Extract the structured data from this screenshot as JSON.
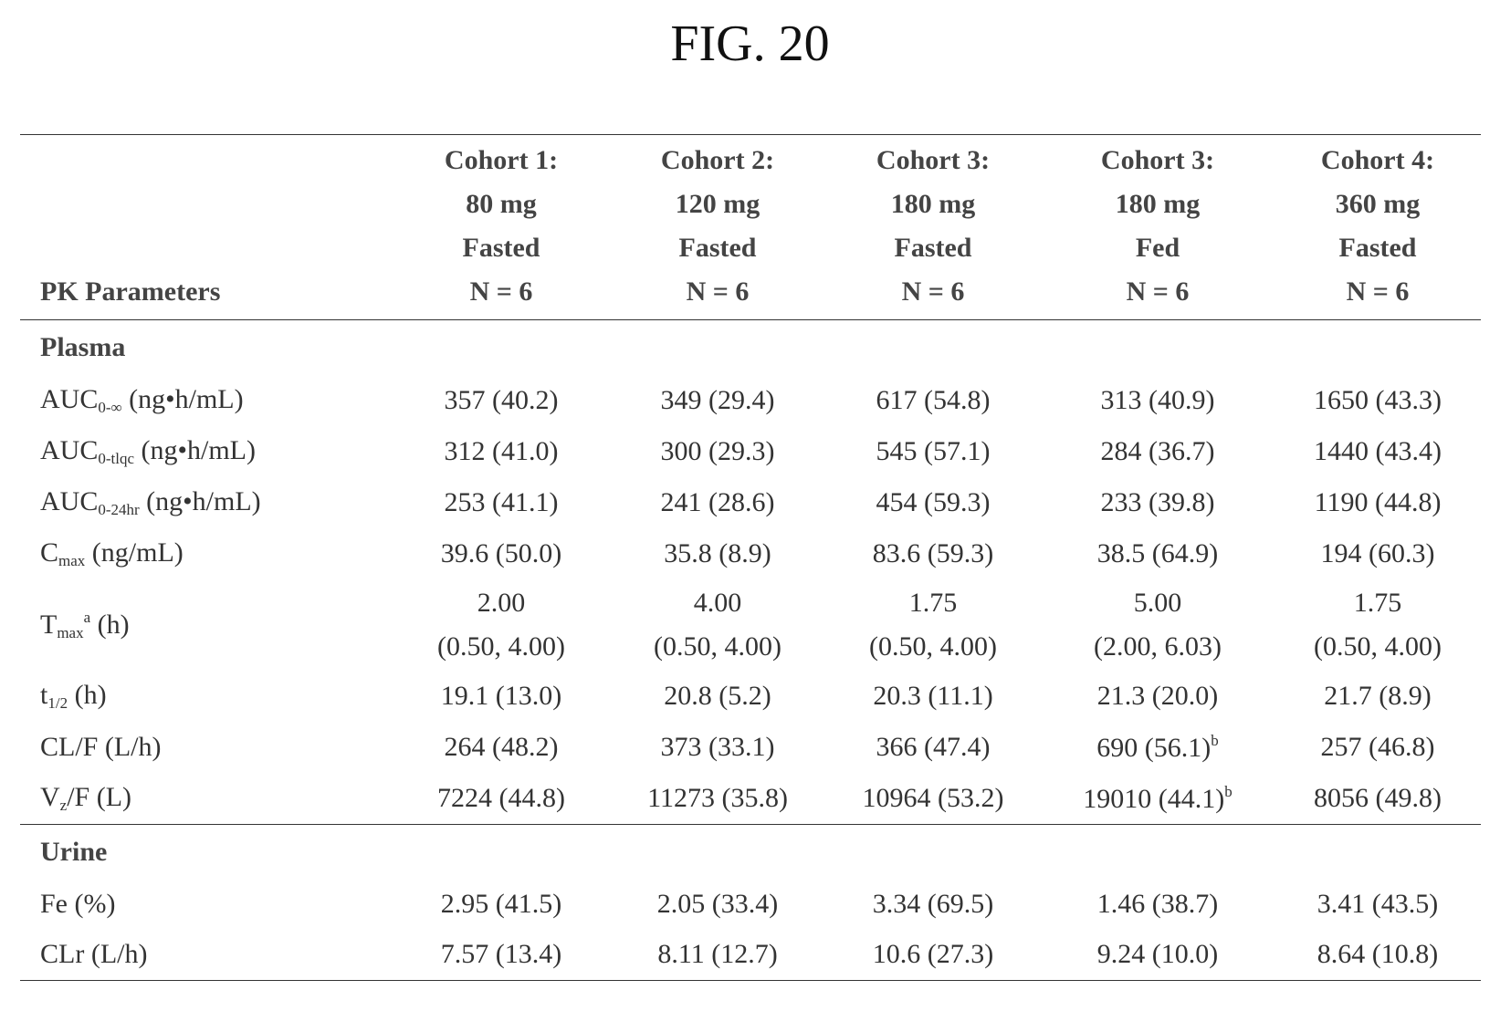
{
  "figure": {
    "title": "FIG. 20"
  },
  "table": {
    "header": {
      "param_label": "PK Parameters",
      "columns": [
        {
          "line1": "Cohort 1:",
          "line2": "80 mg",
          "line3": "Fasted",
          "line4": "N = 6"
        },
        {
          "line1": "Cohort 2:",
          "line2": "120 mg",
          "line3": "Fasted",
          "line4": "N = 6"
        },
        {
          "line1": "Cohort 3:",
          "line2": "180 mg",
          "line3": "Fasted",
          "line4": "N = 6"
        },
        {
          "line1": "Cohort 3:",
          "line2": "180 mg",
          "line3": "Fed",
          "line4": "N = 6"
        },
        {
          "line1": "Cohort 4:",
          "line2": "360 mg",
          "line3": "Fasted",
          "line4": "N = 6"
        }
      ]
    },
    "sections": {
      "plasma": "Plasma",
      "urine": "Urine"
    },
    "rows": {
      "auc_inf": {
        "label_main": "AUC",
        "label_sub": "0-∞",
        "label_rest": " (ng•h/mL)",
        "values": [
          "357 (40.2)",
          "349 (29.4)",
          "617 (54.8)",
          "313 (40.9)",
          "1650 (43.3)"
        ]
      },
      "auc_tlqc": {
        "label_main": "AUC",
        "label_sub": "0-tlqc",
        "label_rest": " (ng•h/mL)",
        "values": [
          "312 (41.0)",
          "300 (29.3)",
          "545 (57.1)",
          "284 (36.7)",
          "1440 (43.4)"
        ]
      },
      "auc_24": {
        "label_main": "AUC",
        "label_sub": "0-24hr",
        "label_rest": " (ng•h/mL)",
        "values": [
          "253 (41.1)",
          "241 (28.6)",
          "454 (59.3)",
          "233 (39.8)",
          "1190 (44.8)"
        ]
      },
      "cmax": {
        "label_main": "C",
        "label_sub": "max",
        "label_rest": " (ng/mL)",
        "values": [
          "39.6 (50.0)",
          "35.8 (8.9)",
          "83.6 (59.3)",
          "38.5 (64.9)",
          "194 (60.3)"
        ]
      },
      "tmax": {
        "label_main": "T",
        "label_sub": "max",
        "label_sup": "a",
        "label_rest": " (h)",
        "values": [
          {
            "median": "2.00",
            "range": "(0.50, 4.00)"
          },
          {
            "median": "4.00",
            "range": "(0.50, 4.00)"
          },
          {
            "median": "1.75",
            "range": "(0.50, 4.00)"
          },
          {
            "median": "5.00",
            "range": "(2.00, 6.03)"
          },
          {
            "median": "1.75",
            "range": "(0.50, 4.00)"
          }
        ]
      },
      "thalf": {
        "label_main": "t",
        "label_sub": "1/2",
        "label_rest": " (h)",
        "values": [
          "19.1 (13.0)",
          "20.8 (5.2)",
          "20.3 (11.1)",
          "21.3 (20.0)",
          "21.7 (8.9)"
        ]
      },
      "clf": {
        "label": "CL/F (L/h)",
        "values": [
          "264 (48.2)",
          "373 (33.1)",
          "366 (47.4)",
          "690 (56.1)",
          "257 (46.8)"
        ],
        "fed_footnote": "b"
      },
      "vzf": {
        "label_main": "V",
        "label_sub": "z",
        "label_rest": "/F (L)",
        "values": [
          "7224 (44.8)",
          "11273 (35.8)",
          "10964 (53.2)",
          "19010 (44.1)",
          "8056 (49.8)"
        ],
        "fed_footnote": "b"
      },
      "fe": {
        "label": "Fe (%)",
        "values": [
          "2.95 (41.5)",
          "2.05 (33.4)",
          "3.34 (69.5)",
          "1.46 (38.7)",
          "3.41 (43.5)"
        ]
      },
      "clr": {
        "label": "CLr (L/h)",
        "values": [
          "7.57 (13.4)",
          "8.11 (12.7)",
          "10.6 (27.3)",
          "9.24 (10.0)",
          "8.64 (10.8)"
        ]
      }
    }
  }
}
